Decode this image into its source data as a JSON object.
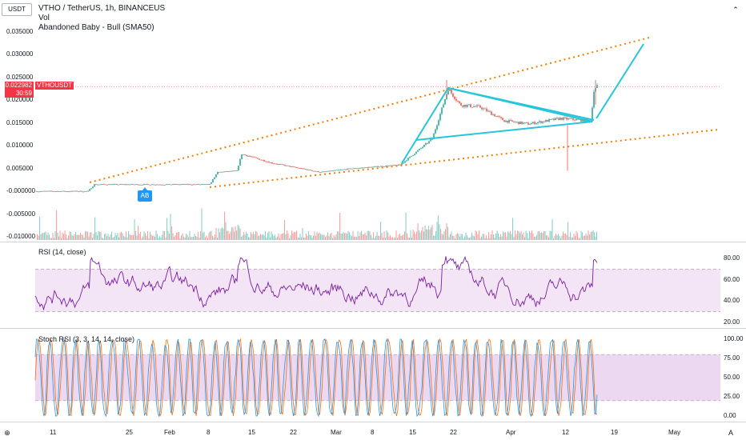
{
  "header": {
    "currency_btn": "USDT",
    "currency_caret": "⌄",
    "symbol_line": "VTHO / TetherUS, 1h, BINANCEUS",
    "vol_label": "Vol",
    "pattern_label": "Abandoned Baby - Bull (SMA50)"
  },
  "price_tag": {
    "price": "0.022982",
    "countdown": "30:59",
    "symbol": "VTHOUSDT"
  },
  "price_axis": [
    "0.035000",
    "0.030000",
    "0.025000",
    "0.020000",
    "0.015000",
    "0.010000",
    "0.005000",
    "-0.000000",
    "-0.005000",
    "-0.010000"
  ],
  "ab_marker": "AB",
  "rsi": {
    "label": "RSI (14, close)",
    "axis": [
      "80.00",
      "60.00",
      "40.00",
      "20.00"
    ]
  },
  "stoch": {
    "label": "Stoch RSI (3, 3, 14, 14, close)",
    "axis": [
      "100.00",
      "75.00",
      "50.00",
      "25.00",
      "0.00"
    ]
  },
  "time_axis": [
    "11",
    "25",
    "Feb",
    "8",
    "15",
    "22",
    "Mar",
    "8",
    "15",
    "22",
    "Apr",
    "12",
    "19",
    "May"
  ],
  "corner_icons": {
    "top_right": "⌃",
    "bottom_left": "⊕",
    "bottom_right": "A"
  },
  "colors": {
    "up": "#26a69a",
    "down": "#ef5350",
    "line": "#2196f3",
    "rsi": "#7b1fa2",
    "stoch_k": "#2196f3",
    "stoch_d": "#ff6d00",
    "trend_dotted": "#f57c00",
    "triangle": "#26c6da",
    "band": "#e1bee7"
  }
}
